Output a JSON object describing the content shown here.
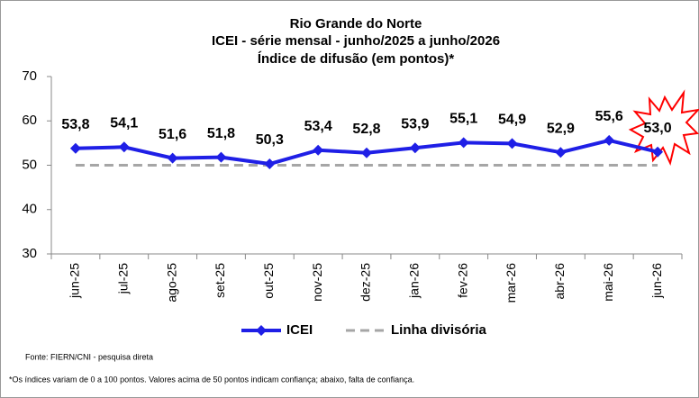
{
  "chart_data": {
    "type": "line",
    "title": [
      "Rio Grande do Norte",
      "ICEI - série mensal - junho/2025 a junho/2026",
      "Índice de difusão (em pontos)*"
    ],
    "categories": [
      "jun-25",
      "jul-25",
      "ago-25",
      "set-25",
      "out-25",
      "nov-25",
      "dez-25",
      "jan-26",
      "fev-26",
      "mar-26",
      "abr-26",
      "mai-26",
      "jun-26"
    ],
    "series": [
      {
        "name": "ICEI",
        "color": "#1f1fe6",
        "line_style": "solid",
        "marker": "diamond",
        "values": [
          53.8,
          54.1,
          51.6,
          51.8,
          50.3,
          53.4,
          52.8,
          53.9,
          55.1,
          54.9,
          52.9,
          55.6,
          53.0
        ],
        "value_labels": [
          "53,8",
          "54,1",
          "51,6",
          "51,8",
          "50,3",
          "53,4",
          "52,8",
          "53,9",
          "55,1",
          "54,9",
          "52,9",
          "55,6",
          "53,0"
        ]
      },
      {
        "name": "Linha divisória",
        "color": "#a6a6a6",
        "line_style": "dashed",
        "values": [
          50,
          50,
          50,
          50,
          50,
          50,
          50,
          50,
          50,
          50,
          50,
          50,
          50
        ]
      }
    ],
    "ylim": [
      30,
      70
    ],
    "yticks": [
      30,
      40,
      50,
      60,
      70
    ],
    "grid": false,
    "source": "Fonte: FIERN/CNI - pesquisa direta",
    "footnote": "*Os índices variam de 0 a 100 pontos. Valores acima de 50 pontos indicam confiança; abaixo, falta de confiança."
  }
}
